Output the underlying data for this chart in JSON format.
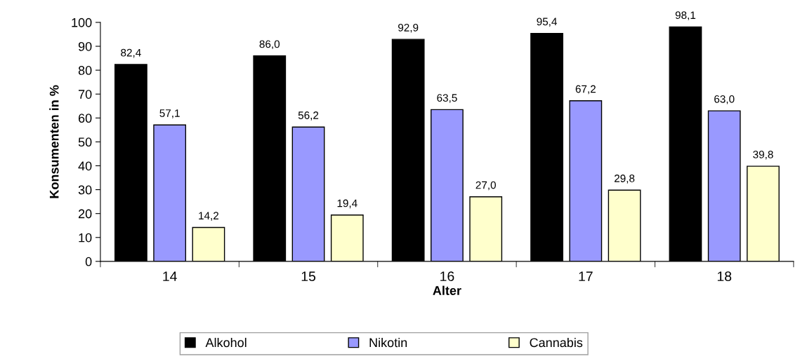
{
  "chart_data": {
    "type": "bar",
    "xlabel": "Alter",
    "ylabel": "Konsumenten in %",
    "categories": [
      "14",
      "15",
      "16",
      "17",
      "18"
    ],
    "series": [
      {
        "name": "Alkohol",
        "color": "#000000",
        "values": [
          82.4,
          86.0,
          92.9,
          95.4,
          98.1
        ],
        "value_labels": [
          "82,4",
          "86,0",
          "92,9",
          "95,4",
          "98,1"
        ]
      },
      {
        "name": "Nikotin",
        "color": "#9999ff",
        "values": [
          57.1,
          56.2,
          63.5,
          67.2,
          63.0
        ],
        "value_labels": [
          "57,1",
          "56,2",
          "63,5",
          "67,2",
          "63,0"
        ]
      },
      {
        "name": "Cannabis",
        "color": "#ffffcc",
        "values": [
          14.2,
          19.4,
          27.0,
          29.8,
          39.8
        ],
        "value_labels": [
          "14,2",
          "19,4",
          "27,0",
          "29,8",
          "39,8"
        ]
      }
    ],
    "ylim": [
      0,
      100
    ],
    "yticks": [
      0,
      10,
      20,
      30,
      40,
      50,
      60,
      70,
      80,
      90,
      100
    ],
    "grid": false,
    "legend": "bottom"
  }
}
